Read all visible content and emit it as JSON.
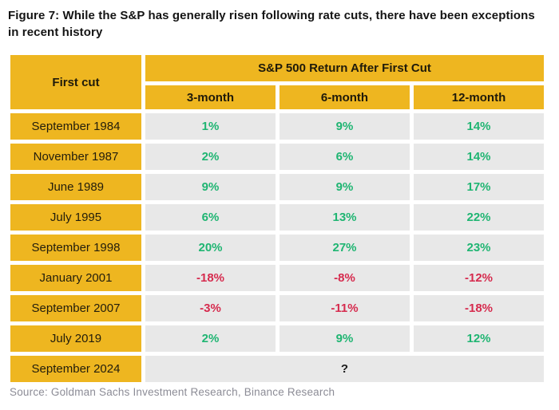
{
  "header": {
    "title": "Figure 7: While the S&P has generally risen following rate cuts, there have been exceptions in recent history",
    "title_lines": [
      "Figure 7: While the S&P has generally risen following rate cuts, there have been",
      "exceptions in recent history"
    ]
  },
  "table": {
    "first_col_header": "First cut",
    "group_header": "S&P 500 Return After First Cut",
    "col_headers": [
      "3-month",
      "6-month",
      "12-month"
    ],
    "rows": [
      {
        "label": "September 1984",
        "values": [
          "1%",
          "9%",
          "14%"
        ]
      },
      {
        "label": "November 1987",
        "values": [
          "2%",
          "6%",
          "14%"
        ]
      },
      {
        "label": "June 1989",
        "values": [
          "9%",
          "9%",
          "17%"
        ]
      },
      {
        "label": "July 1995",
        "values": [
          "6%",
          "13%",
          "22%"
        ]
      },
      {
        "label": "September 1998",
        "values": [
          "20%",
          "27%",
          "23%"
        ]
      },
      {
        "label": "January 2001",
        "values": [
          "-18%",
          "-8%",
          "-12%"
        ]
      },
      {
        "label": "September 2007",
        "values": [
          "-3%",
          "-11%",
          "-18%"
        ]
      },
      {
        "label": "July 2019",
        "values": [
          "2%",
          "9%",
          "12%"
        ]
      }
    ],
    "pending_row": {
      "label": "September 2024",
      "value": "?"
    }
  },
  "source": "Source: Goldman Sachs Investment Research, Binance Research",
  "colors": {
    "header_yellow": "#EEB620",
    "cell_gray": "#E8E8E8",
    "positive_green": "#1FB572",
    "negative_red": "#D62B4E",
    "title_black": "#141414",
    "source_gray": "#8C8C96"
  },
  "chart_data": {
    "type": "table",
    "title": "Figure 7: While the S&P has generally risen following rate cuts, there have been exceptions in recent history",
    "group_header": "S&P 500 Return After First Cut",
    "columns": [
      "First cut",
      "3-month",
      "6-month",
      "12-month"
    ],
    "rows": [
      [
        "September 1984",
        "1%",
        "9%",
        "14%"
      ],
      [
        "November 1987",
        "2%",
        "6%",
        "14%"
      ],
      [
        "June 1989",
        "9%",
        "9%",
        "17%"
      ],
      [
        "July 1995",
        "6%",
        "13%",
        "22%"
      ],
      [
        "September 1998",
        "20%",
        "27%",
        "23%"
      ],
      [
        "January 2001",
        "-18%",
        "-8%",
        "-12%"
      ],
      [
        "September 2007",
        "-3%",
        "-11%",
        "-18%"
      ],
      [
        "July 2019",
        "2%",
        "9%",
        "12%"
      ],
      [
        "September 2024",
        "?"
      ]
    ],
    "numeric_series": {
      "categories": [
        "Sep 1984",
        "Nov 1987",
        "Jun 1989",
        "Jul 1995",
        "Sep 1998",
        "Jan 2001",
        "Sep 2007",
        "Jul 2019"
      ],
      "series": [
        {
          "name": "3-month",
          "values": [
            1,
            2,
            9,
            6,
            20,
            -18,
            -3,
            2
          ]
        },
        {
          "name": "6-month",
          "values": [
            9,
            6,
            9,
            13,
            27,
            -8,
            -11,
            9
          ]
        },
        {
          "name": "12-month",
          "values": [
            14,
            14,
            17,
            22,
            23,
            -12,
            -18,
            12
          ]
        }
      ],
      "unit": "percent"
    },
    "source": "Source: Goldman Sachs Investment Research, Binance Research"
  }
}
